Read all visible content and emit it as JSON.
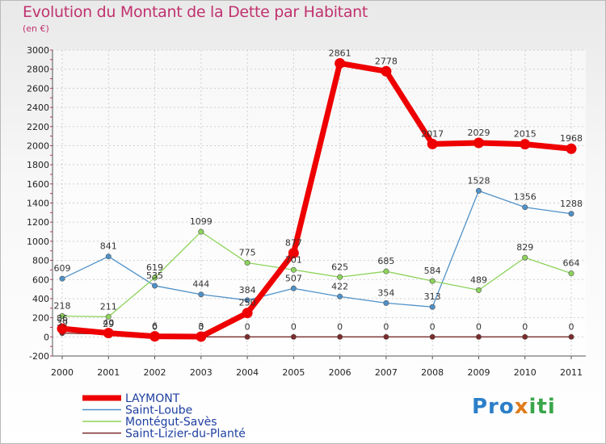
{
  "title": "Evolution du Montant de la Dette par Habitant",
  "unit": "(en €)",
  "brand": {
    "p1": "Pro",
    "x": "x",
    "p2": "iti"
  },
  "chart_data": {
    "type": "line",
    "x": [
      "2000",
      "2001",
      "2002",
      "2003",
      "2004",
      "2005",
      "2006",
      "2007",
      "2008",
      "2009",
      "2010",
      "2011"
    ],
    "ylim": [
      -200,
      3000
    ],
    "yticks": [
      -200,
      0,
      200,
      400,
      600,
      800,
      1000,
      1200,
      1400,
      1600,
      1800,
      2000,
      2200,
      2400,
      2600,
      2800,
      3000
    ],
    "grid": true,
    "legend_position": "bottom-left",
    "series": [
      {
        "name": "LAYMONT",
        "color": "#ee0000",
        "width": 7,
        "values": [
          86,
          40,
          6,
          3,
          250,
          877,
          2861,
          2778,
          2017,
          2029,
          2015,
          1968
        ]
      },
      {
        "name": "Saint-Loube",
        "color": "#4f91c8",
        "width": 1.3,
        "values": [
          609,
          841,
          535,
          444,
          384,
          507,
          422,
          354,
          313,
          1528,
          1356,
          1288
        ]
      },
      {
        "name": "Montégut-Savès",
        "color": "#8dd35c",
        "width": 1.3,
        "values": [
          218,
          211,
          619,
          1099,
          775,
          701,
          625,
          685,
          584,
          489,
          829,
          664
        ]
      },
      {
        "name": "Saint-Lizier-du-Planté",
        "color": "#7b2b2b",
        "width": 1.3,
        "values": [
          39,
          29,
          0,
          0,
          0,
          0,
          0,
          0,
          0,
          0,
          0,
          0
        ]
      }
    ],
    "data_labels": [
      {
        "series": 0,
        "i": 0,
        "text": "86"
      },
      {
        "series": 0,
        "i": 1,
        "text": "40"
      },
      {
        "series": 0,
        "i": 2,
        "text": "6"
      },
      {
        "series": 0,
        "i": 3,
        "text": "3"
      },
      {
        "series": 0,
        "i": 4,
        "text": "250"
      },
      {
        "series": 0,
        "i": 5,
        "text": "877"
      },
      {
        "series": 0,
        "i": 6,
        "text": "2861"
      },
      {
        "series": 0,
        "i": 7,
        "text": "2778"
      },
      {
        "series": 0,
        "i": 8,
        "text": "2017"
      },
      {
        "series": 0,
        "i": 9,
        "text": "2029"
      },
      {
        "series": 0,
        "i": 10,
        "text": "2015"
      },
      {
        "series": 0,
        "i": 11,
        "text": "1968"
      },
      {
        "series": 1,
        "i": 0,
        "text": "609"
      },
      {
        "series": 1,
        "i": 1,
        "text": "841"
      },
      {
        "series": 1,
        "i": 2,
        "text": "535"
      },
      {
        "series": 1,
        "i": 3,
        "text": "444"
      },
      {
        "series": 1,
        "i": 4,
        "text": "384"
      },
      {
        "series": 1,
        "i": 5,
        "text": "507"
      },
      {
        "series": 1,
        "i": 6,
        "text": "422"
      },
      {
        "series": 1,
        "i": 7,
        "text": "354"
      },
      {
        "series": 1,
        "i": 8,
        "text": "313"
      },
      {
        "series": 1,
        "i": 9,
        "text": "1528"
      },
      {
        "series": 1,
        "i": 10,
        "text": "1356"
      },
      {
        "series": 1,
        "i": 11,
        "text": "1288"
      },
      {
        "series": 2,
        "i": 0,
        "text": "218"
      },
      {
        "series": 2,
        "i": 1,
        "text": "211"
      },
      {
        "series": 2,
        "i": 2,
        "text": "619"
      },
      {
        "series": 2,
        "i": 3,
        "text": "1099"
      },
      {
        "series": 2,
        "i": 4,
        "text": "775"
      },
      {
        "series": 2,
        "i": 5,
        "text": "701"
      },
      {
        "series": 2,
        "i": 6,
        "text": "625"
      },
      {
        "series": 2,
        "i": 7,
        "text": "685"
      },
      {
        "series": 2,
        "i": 8,
        "text": "584"
      },
      {
        "series": 2,
        "i": 9,
        "text": "489"
      },
      {
        "series": 2,
        "i": 10,
        "text": "829"
      },
      {
        "series": 2,
        "i": 11,
        "text": "664"
      },
      {
        "series": 3,
        "i": 0,
        "text": "39"
      },
      {
        "series": 3,
        "i": 1,
        "text": "29"
      },
      {
        "series": 3,
        "i": 2,
        "text": "0"
      },
      {
        "series": 3,
        "i": 3,
        "text": "0"
      },
      {
        "series": 3,
        "i": 4,
        "text": "0"
      },
      {
        "series": 3,
        "i": 5,
        "text": "0"
      },
      {
        "series": 3,
        "i": 6,
        "text": "0"
      },
      {
        "series": 3,
        "i": 7,
        "text": "0"
      },
      {
        "series": 3,
        "i": 8,
        "text": "0"
      },
      {
        "series": 3,
        "i": 9,
        "text": "0"
      },
      {
        "series": 3,
        "i": 10,
        "text": "0"
      },
      {
        "series": 3,
        "i": 11,
        "text": "0"
      }
    ]
  }
}
